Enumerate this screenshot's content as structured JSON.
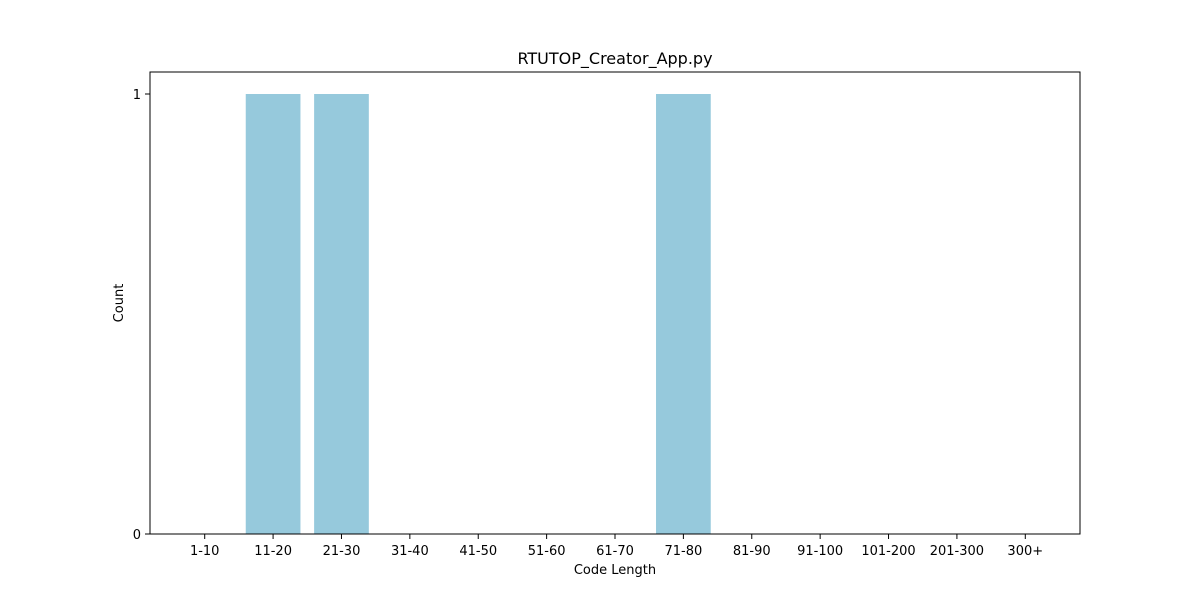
{
  "chart_data": {
    "type": "bar",
    "title": "RTUTOP_Creator_App.py",
    "xlabel": "Code Length",
    "ylabel": "Count",
    "categories": [
      "1-10",
      "11-20",
      "21-30",
      "31-40",
      "41-50",
      "51-60",
      "61-70",
      "71-80",
      "81-90",
      "91-100",
      "101-200",
      "201-300",
      "300+"
    ],
    "values": [
      0,
      1,
      1,
      0,
      0,
      0,
      0,
      1,
      0,
      0,
      0,
      0,
      0
    ],
    "ylim": [
      0,
      1.05
    ],
    "yticks": [
      0,
      1
    ],
    "grid": false,
    "bar_color": "#96c9dc"
  }
}
